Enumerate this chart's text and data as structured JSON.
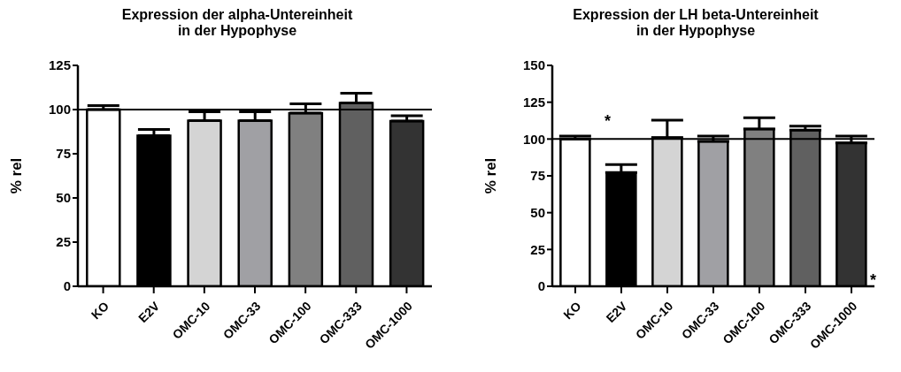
{
  "chart_data": [
    {
      "type": "bar",
      "title": "Expression der alpha-Untereinheit\nin der Hypophyse",
      "ylabel": "% rel",
      "categories": [
        "KO",
        "E2V",
        "OMC-10",
        "OMC-33",
        "OMC-100",
        "OMC-333",
        "OMC-1000"
      ],
      "values": [
        100,
        85.3,
        93.8,
        93.8,
        98,
        103.8,
        93.5
      ],
      "errors": [
        [
          100,
          102.2
        ],
        [
          85.3,
          88.7
        ],
        [
          93.8,
          98.7
        ],
        [
          93.8,
          98.7
        ],
        [
          98,
          103.3
        ],
        [
          103.8,
          109.2
        ],
        [
          93.5,
          96.5
        ]
      ],
      "colors": [
        "#ffffff",
        "#000000",
        "#d4d4d4",
        "#a0a0a4",
        "#808080",
        "#606060",
        "#333333"
      ],
      "ylim": [
        0,
        125
      ],
      "yticks": [
        0,
        25,
        50,
        75,
        100,
        125
      ],
      "grid": false,
      "legend": false,
      "ref_lines": [
        {
          "axis": "y",
          "value": 100,
          "color": "#000000"
        }
      ]
    },
    {
      "type": "bar",
      "title": "Expression der LH beta-Untereinheit\nin der Hypophyse",
      "ylabel": "% rel",
      "categories": [
        "KO",
        "E2V",
        "OMC-10",
        "OMC-33",
        "OMC-100",
        "OMC-333",
        "OMC-1000"
      ],
      "values": [
        100,
        77.2,
        101,
        98.4,
        106.8,
        106,
        97.4
      ],
      "errors": [
        [
          100,
          102
        ],
        [
          77.2,
          82.6
        ],
        [
          101,
          112.8
        ],
        [
          98.4,
          102
        ],
        [
          106.8,
          114.4
        ],
        [
          106,
          108.8
        ],
        [
          97.4,
          102
        ]
      ],
      "colors": [
        "#ffffff",
        "#000000",
        "#d4d4d4",
        "#a0a0a4",
        "#808080",
        "#606060",
        "#333333"
      ],
      "ylim": [
        0,
        150
      ],
      "yticks": [
        0,
        25,
        50,
        75,
        100,
        125,
        150
      ],
      "grid": false,
      "legend": false,
      "ref_lines": [
        {
          "axis": "y",
          "value": 100,
          "color": "#000000"
        }
      ],
      "annotations": [
        "*",
        "*"
      ]
    }
  ]
}
